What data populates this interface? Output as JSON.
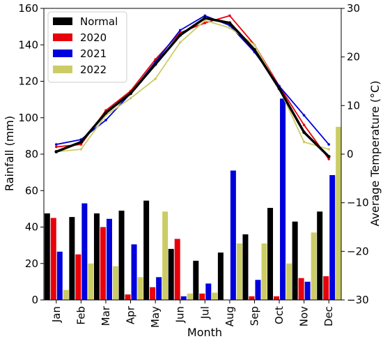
{
  "chart_data": {
    "type": "bar+line",
    "xlabel": "Month",
    "ylabel_left": "Rainfall (mm)",
    "ylabel_right": "Average Temperature (°C)",
    "ylim_left": [
      0,
      160
    ],
    "ylim_right": [
      -30,
      30
    ],
    "yticks_left": [
      "0",
      "20",
      "40",
      "60",
      "80",
      "100",
      "120",
      "140",
      "160"
    ],
    "yticks_right": [
      "−30",
      "−20",
      "−10",
      "0",
      "10",
      "20",
      "30"
    ],
    "categories": [
      "Jan",
      "Feb",
      "Mar",
      "Apr",
      "May",
      "Jun",
      "Jul",
      "Aug",
      "Sep",
      "Oct",
      "Nov",
      "Dec"
    ],
    "legend_position": "top-left",
    "grid": false,
    "series": [
      {
        "name": "Normal",
        "color": "#000000",
        "rainfall": [
          47.5,
          45.5,
          47.5,
          49,
          54.5,
          28,
          21.5,
          26,
          36,
          50.5,
          43,
          48.5
        ],
        "temperature": [
          0.5,
          2.5,
          8.5,
          12.5,
          18.5,
          24.5,
          28,
          27,
          21.5,
          13.5,
          4.5,
          -0.5
        ]
      },
      {
        "name": "2020",
        "color": "#e8000b",
        "rainfall": [
          45,
          25,
          40,
          3,
          7,
          33.5,
          3.5,
          0,
          2,
          2,
          12,
          13
        ],
        "temperature": [
          1.5,
          2,
          9,
          13,
          19.5,
          25,
          27,
          28.5,
          22.5,
          14,
          6,
          -1
        ]
      },
      {
        "name": "2021",
        "color": "#0000dd",
        "rainfall": [
          26.5,
          53,
          44.5,
          30.5,
          12.5,
          2,
          9,
          71,
          11,
          110.5,
          10,
          68.5
        ],
        "temperature": [
          2,
          3,
          7,
          12.5,
          19,
          25.5,
          28.5,
          26.5,
          21,
          14,
          8,
          2
        ]
      },
      {
        "name": "2022",
        "color": "#cccc66",
        "rainfall": [
          5.5,
          20,
          18.5,
          12.5,
          48.5,
          3.5,
          4,
          31,
          31,
          20,
          37,
          95
        ],
        "temperature": [
          0.5,
          1,
          8,
          11.5,
          15.5,
          23,
          27.5,
          26,
          22.5,
          13.5,
          2.5,
          1
        ]
      }
    ]
  }
}
